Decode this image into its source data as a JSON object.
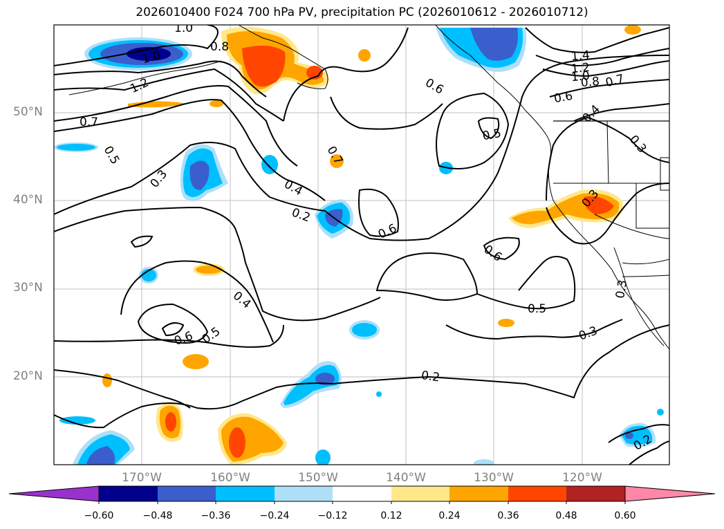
{
  "title": "2026010400 F024 700 hPa PV, precipitation PC (2026010612 - 2026010712)",
  "lat_labels": [
    "50°N",
    "40°N",
    "30°N",
    "20°N"
  ],
  "lon_labels": [
    "170°W",
    "160°W",
    "150°W",
    "140°W",
    "130°W",
    "120°W"
  ],
  "contour_labels": [
    "1.0",
    "0.8",
    "1.0",
    "1.2",
    "0.7",
    "0.5",
    "0.3",
    "0.4",
    "0.2",
    "0.7",
    "0.6",
    "0.4",
    "0.6",
    "0.5",
    "0.5",
    "0.6",
    "0.5",
    "0.2",
    "0.3",
    "0.3",
    "0.3",
    "0.6",
    "1.4",
    "1.2",
    "1.0",
    "0.8",
    "0.7",
    "0.6",
    "0.4",
    "0.3",
    "0.2"
  ],
  "colorbar": {
    "ticks": [
      "−0.60",
      "−0.48",
      "−0.36",
      "−0.24",
      "−0.12",
      "0.12",
      "0.24",
      "0.36",
      "0.48",
      "0.60"
    ],
    "colors": {
      "under": "#9932CC",
      "neg_060_048": "#00008B",
      "neg_048_036": "#3A5FCD",
      "neg_036_024": "#00BFFF",
      "neg_024_012": "#ADE0F7",
      "neutral": "#FFFFFF",
      "pos_012_024": "#FFE88A",
      "pos_024_036": "#FFA500",
      "pos_036_048": "#FF4500",
      "pos_048_060": "#B22222",
      "over": "#FF88A8"
    }
  }
}
